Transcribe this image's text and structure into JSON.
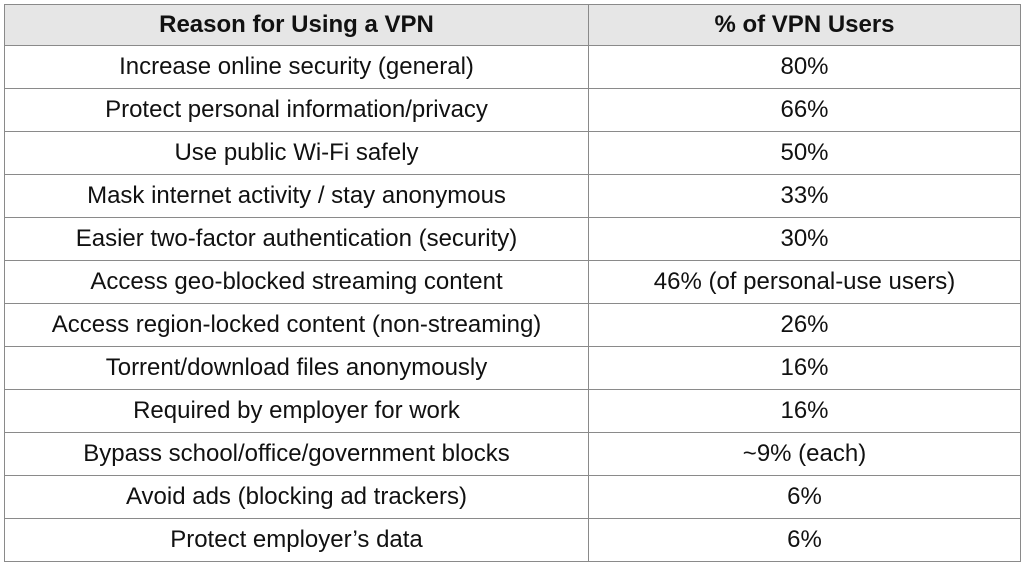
{
  "table": {
    "header": [
      "Reason for Using a VPN",
      "% of VPN Users"
    ],
    "rows": [
      [
        "Increase online security (general)",
        "80%"
      ],
      [
        "Protect personal information/privacy",
        "66%"
      ],
      [
        "Use public Wi-Fi safely",
        "50%"
      ],
      [
        "Mask internet activity / stay anonymous",
        "33%"
      ],
      [
        "Easier two-factor authentication (security)",
        "30%"
      ],
      [
        "Access geo-blocked streaming content",
        "46% (of personal-use users)"
      ],
      [
        "Access region-locked content (non-streaming)",
        "26%"
      ],
      [
        "Torrent/download files anonymously",
        "16%"
      ],
      [
        "Required by employer for work",
        "16%"
      ],
      [
        "Bypass school/office/government blocks",
        "~9% (each)"
      ],
      [
        "Avoid ads (blocking ad trackers)",
        "6%"
      ],
      [
        "Protect employer’s data",
        "6%"
      ]
    ]
  }
}
